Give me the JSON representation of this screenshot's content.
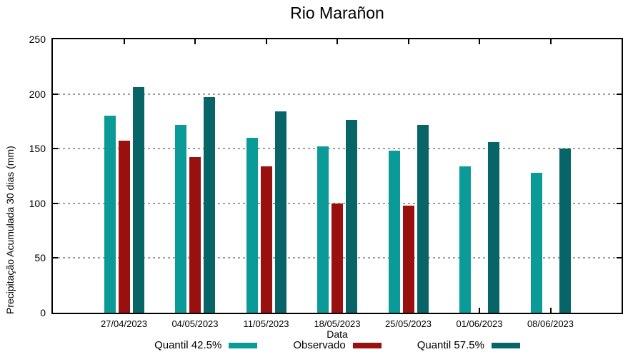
{
  "title": "Rio Marañon",
  "chart_data": {
    "type": "bar",
    "title": "Rio Marañon",
    "xlabel": "Data",
    "ylabel": "Precipitação Acumulada 30 dias (mm)",
    "categories": [
      "27/04/2023",
      "04/05/2023",
      "11/05/2023",
      "18/05/2023",
      "25/05/2023",
      "01/06/2023",
      "08/06/2023"
    ],
    "series": [
      {
        "name": "Quantil 42.5%",
        "color": "#0a9b98",
        "values": [
          180,
          172,
          160,
          152,
          148,
          134,
          128
        ]
      },
      {
        "name": "Observado",
        "color": "#9a100e",
        "values": [
          157,
          142,
          134,
          100,
          98,
          null,
          null
        ]
      },
      {
        "name": "Quantil 57.5%",
        "color": "#076467",
        "values": [
          206,
          197,
          184,
          176,
          172,
          156,
          150
        ]
      }
    ],
    "ylim": [
      0,
      250
    ],
    "yticks": [
      0,
      50,
      100,
      150,
      200,
      250
    ],
    "grid": true,
    "legend_position": "bottom",
    "background": "#ffffff",
    "axis_color": "#000000",
    "grid_color": "#9e9e9e"
  }
}
